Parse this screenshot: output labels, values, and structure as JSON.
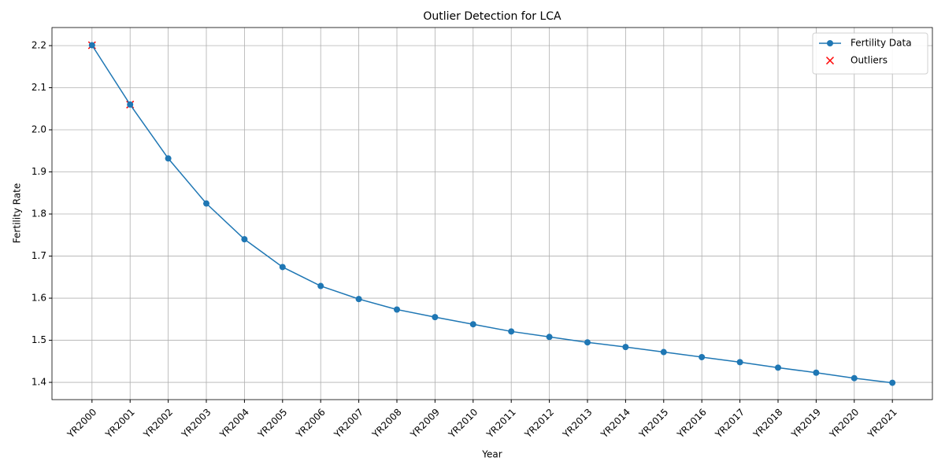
{
  "chart_data": {
    "type": "line",
    "title": "Outlier Detection for LCA",
    "xlabel": "Year",
    "ylabel": "Fertility Rate",
    "categories": [
      "YR2000",
      "YR2001",
      "YR2002",
      "YR2003",
      "YR2004",
      "YR2005",
      "YR2006",
      "YR2007",
      "YR2008",
      "YR2009",
      "YR2010",
      "YR2011",
      "YR2012",
      "YR2013",
      "YR2014",
      "YR2015",
      "YR2016",
      "YR2017",
      "YR2018",
      "YR2019",
      "YR2020",
      "YR2021"
    ],
    "series": [
      {
        "name": "Fertility Data",
        "type": "line",
        "color": "#1f77b4",
        "values": [
          2.201,
          2.06,
          1.932,
          1.825,
          1.74,
          1.674,
          1.629,
          1.598,
          1.573,
          1.555,
          1.538,
          1.521,
          1.508,
          1.495,
          1.484,
          1.472,
          1.46,
          1.448,
          1.435,
          1.423,
          1.41,
          1.399
        ]
      },
      {
        "name": "Outliers",
        "type": "scatter",
        "color": "#ff0000",
        "values": [
          2.201,
          2.06,
          null,
          null,
          null,
          null,
          null,
          null,
          null,
          null,
          null,
          null,
          null,
          null,
          null,
          null,
          null,
          null,
          null,
          null,
          null,
          null
        ]
      }
    ],
    "ylim": [
      1.359,
      2.243
    ],
    "yticks": [
      1.4,
      1.5,
      1.6,
      1.7,
      1.8,
      1.9,
      {
        "value": 2,
        "label": "2.0"
      },
      2.1,
      2.2
    ],
    "grid": true,
    "legend": "upper right"
  }
}
